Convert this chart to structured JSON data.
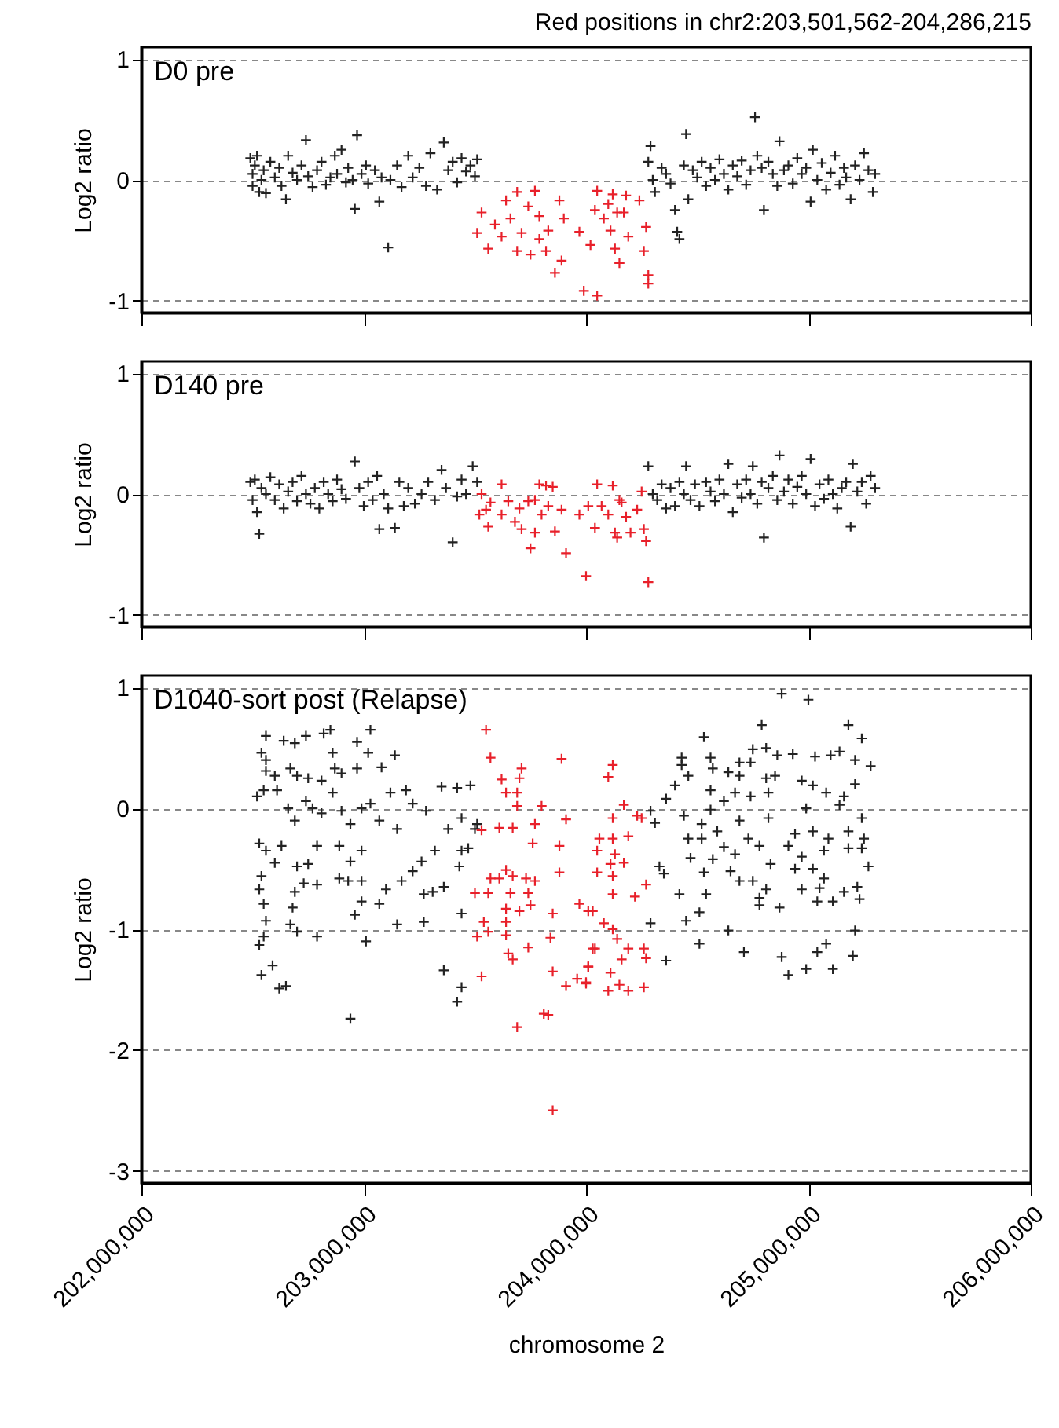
{
  "chart_data": [
    {
      "type": "scatter",
      "title": "Red positions in chr2:203,501,562-204,286,215",
      "annotations": [
        "D0 pre"
      ],
      "ylabel": "Log2 ratio",
      "xlim": [
        202000000,
        206000000
      ],
      "ylim": [
        -1.1,
        1.1
      ],
      "yticks": [
        -1,
        0,
        1
      ],
      "xticks": [
        {
          "value": 202000000,
          "label": null
        },
        {
          "value": 203000000,
          "label": null
        },
        {
          "value": 204000000,
          "label": null
        },
        {
          "value": 205000000,
          "label": null
        },
        {
          "value": 206000000,
          "label": null
        }
      ],
      "tick_labels": "y",
      "grid": "y",
      "marker": "cross",
      "series": [
        {
          "color": "#222222",
          "x": [
            202490000,
            202500000,
            202500000,
            202510000,
            202520000,
            202530000,
            202540000,
            202550000,
            202560000,
            202580000,
            202600000,
            202620000,
            202630000,
            202650000,
            202660000,
            202680000,
            202700000,
            202720000,
            202740000,
            202750000,
            202770000,
            202790000,
            202810000,
            202830000,
            202850000,
            202870000,
            202880000,
            202900000,
            202920000,
            202930000,
            202950000,
            202960000,
            202970000,
            202990000,
            203010000,
            203020000,
            203050000,
            203070000,
            203080000,
            203110000,
            203120000,
            203150000,
            203170000,
            203200000,
            203220000,
            203250000,
            203280000,
            203300000,
            203330000,
            203360000,
            203380000,
            203400000,
            203420000,
            203440000,
            203460000,
            203480000,
            203500000,
            203510000,
            204280000,
            204290000,
            204300000,
            204310000,
            204340000,
            204360000,
            204380000,
            204400000,
            204410000,
            204420000,
            204440000,
            204450000,
            204460000,
            204480000,
            204500000,
            204520000,
            204540000,
            204560000,
            204580000,
            204600000,
            204620000,
            204640000,
            204660000,
            204680000,
            204700000,
            204720000,
            204740000,
            204760000,
            204770000,
            204790000,
            204800000,
            204820000,
            204840000,
            204860000,
            204870000,
            204890000,
            204910000,
            204930000,
            204950000,
            204970000,
            204990000,
            205010000,
            205020000,
            205040000,
            205060000,
            205080000,
            205100000,
            205120000,
            205140000,
            205160000,
            205170000,
            205190000,
            205210000,
            205230000,
            205250000,
            205270000,
            205290000,
            205300000
          ],
          "values": [
            0.18,
            0.05,
            -0.05,
            0.12,
            0.2,
            -0.1,
            0.0,
            0.08,
            -0.11,
            0.15,
            0.02,
            0.1,
            -0.05,
            -0.16,
            0.2,
            0.06,
            0.0,
            0.12,
            0.33,
            0.03,
            -0.06,
            0.08,
            0.15,
            -0.04,
            0.02,
            0.2,
            0.05,
            0.25,
            -0.02,
            0.1,
            0.0,
            -0.24,
            0.37,
            0.05,
            0.12,
            -0.03,
            0.08,
            -0.18,
            0.02,
            -0.56,
            0.0,
            0.12,
            -0.06,
            0.2,
            0.02,
            0.1,
            -0.05,
            0.22,
            -0.08,
            0.31,
            0.08,
            0.15,
            -0.02,
            0.18,
            0.07,
            0.12,
            0.03,
            0.17,
            0.15,
            0.28,
            0.0,
            -0.1,
            0.1,
            0.05,
            -0.03,
            -0.25,
            -0.43,
            -0.49,
            0.12,
            0.38,
            -0.16,
            0.08,
            0.02,
            0.15,
            -0.05,
            0.1,
            0.0,
            0.17,
            0.05,
            -0.08,
            0.12,
            0.03,
            0.16,
            -0.04,
            0.08,
            0.52,
            0.2,
            0.1,
            -0.25,
            0.15,
            0.05,
            -0.05,
            0.32,
            0.08,
            0.12,
            -0.03,
            0.18,
            0.05,
            0.1,
            -0.18,
            0.25,
            0.0,
            0.14,
            -0.08,
            0.06,
            0.2,
            -0.04,
            0.1,
            0.02,
            -0.16,
            0.12,
            0.0,
            0.22,
            0.08,
            -0.1,
            0.05
          ]
        },
        {
          "color": "#e8202a",
          "x": [
            203530000,
            203510000,
            203560000,
            203640000,
            203690000,
            203770000,
            203740000,
            203660000,
            203620000,
            203690000,
            203750000,
            203790000,
            203830000,
            203880000,
            203900000,
            203890000,
            203860000,
            203820000,
            203990000,
            204050000,
            203970000,
            204020000,
            204050000,
            204040000,
            204100000,
            204120000,
            204180000,
            204110000,
            204130000,
            204150000,
            204190000,
            204240000,
            204270000,
            204260000,
            204280000,
            204280000,
            204080000,
            204170000,
            203590000,
            203710000,
            203790000,
            204140000
          ],
          "values": [
            -0.27,
            -0.44,
            -0.57,
            -0.17,
            -0.1,
            -0.09,
            -0.22,
            -0.32,
            -0.47,
            -0.59,
            -0.62,
            -0.3,
            -0.42,
            -0.17,
            -0.32,
            -0.67,
            -0.77,
            -0.59,
            -0.92,
            -0.96,
            -0.43,
            -0.54,
            -0.09,
            -0.25,
            -0.2,
            -0.12,
            -0.13,
            -0.42,
            -0.57,
            -0.69,
            -0.47,
            -0.17,
            -0.39,
            -0.59,
            -0.79,
            -0.86,
            -0.32,
            -0.27,
            -0.37,
            -0.44,
            -0.49,
            -0.27
          ]
        }
      ]
    },
    {
      "type": "scatter",
      "annotations": [
        "D140 pre"
      ],
      "ylabel": "Log2 ratio",
      "xlim": [
        202000000,
        206000000
      ],
      "ylim": [
        -1.1,
        1.1
      ],
      "yticks": [
        -1,
        0,
        1
      ],
      "xticks": [
        {
          "value": 202000000,
          "label": null
        },
        {
          "value": 203000000,
          "label": null
        },
        {
          "value": 204000000,
          "label": null
        },
        {
          "value": 205000000,
          "label": null
        },
        {
          "value": 206000000,
          "label": null
        }
      ],
      "tick_labels": "y",
      "grid": "y",
      "marker": "cross",
      "series": [
        {
          "color": "#222222",
          "x": [
            202490000,
            202500000,
            202510000,
            202520000,
            202530000,
            202540000,
            202560000,
            202580000,
            202600000,
            202620000,
            202640000,
            202660000,
            202680000,
            202700000,
            202720000,
            202740000,
            202760000,
            202780000,
            202800000,
            202820000,
            202840000,
            202860000,
            202880000,
            202900000,
            202920000,
            202960000,
            202980000,
            203000000,
            203020000,
            203040000,
            203060000,
            203070000,
            203090000,
            203110000,
            203140000,
            203160000,
            203180000,
            203200000,
            203230000,
            203260000,
            203290000,
            203320000,
            203350000,
            203370000,
            203400000,
            203420000,
            203440000,
            203460000,
            203490000,
            203510000,
            204280000,
            204300000,
            204320000,
            204340000,
            204360000,
            204380000,
            204400000,
            204420000,
            204440000,
            204450000,
            204470000,
            204490000,
            204510000,
            204540000,
            204560000,
            204580000,
            204600000,
            204620000,
            204640000,
            204660000,
            204680000,
            204700000,
            204720000,
            204740000,
            204750000,
            204770000,
            204790000,
            204800000,
            204820000,
            204840000,
            204860000,
            204870000,
            204890000,
            204910000,
            204930000,
            204950000,
            204970000,
            204990000,
            205010000,
            205030000,
            205050000,
            205070000,
            205090000,
            205110000,
            205130000,
            205150000,
            205170000,
            205190000,
            205200000,
            205220000,
            205240000,
            205260000,
            205280000,
            205300000
          ],
          "values": [
            0.1,
            -0.05,
            0.12,
            -0.15,
            -0.33,
            0.05,
            0.0,
            0.14,
            -0.05,
            0.08,
            -0.12,
            0.02,
            0.1,
            -0.06,
            0.15,
            0.0,
            -0.08,
            0.05,
            -0.12,
            0.1,
            0.0,
            -0.06,
            0.12,
            0.04,
            -0.04,
            0.27,
            0.05,
            -0.1,
            0.1,
            -0.05,
            0.15,
            -0.29,
            0.0,
            -0.12,
            -0.28,
            0.1,
            -0.1,
            0.05,
            -0.08,
            0.0,
            0.1,
            -0.05,
            0.2,
            0.05,
            -0.4,
            -0.02,
            0.12,
            0.0,
            0.23,
            0.1,
            0.23,
            0.0,
            -0.05,
            0.08,
            -0.12,
            0.05,
            -0.1,
            0.1,
            0.0,
            0.23,
            -0.05,
            0.08,
            -0.1,
            0.1,
            0.02,
            -0.06,
            0.12,
            0.0,
            0.25,
            -0.15,
            0.08,
            -0.03,
            0.12,
            0.0,
            0.23,
            -0.08,
            0.1,
            -0.36,
            0.05,
            0.15,
            -0.05,
            0.32,
            0.02,
            0.12,
            -0.08,
            0.06,
            0.15,
            0.0,
            0.29,
            -0.1,
            0.08,
            -0.04,
            0.12,
            0.0,
            -0.12,
            0.05,
            0.1,
            -0.27,
            0.25,
            0.02,
            0.1,
            -0.08,
            0.15,
            0.05
          ]
        },
        {
          "color": "#e8202a",
          "x": [
            203530000,
            203550000,
            203520000,
            203560000,
            203570000,
            203620000,
            203620000,
            203650000,
            203680000,
            203700000,
            203710000,
            203740000,
            203770000,
            203790000,
            203820000,
            203850000,
            203750000,
            203770000,
            203800000,
            203830000,
            203860000,
            203890000,
            203910000,
            204000000,
            203970000,
            204010000,
            204040000,
            204050000,
            204070000,
            204100000,
            204120000,
            204130000,
            204140000,
            204160000,
            204180000,
            204200000,
            204230000,
            204250000,
            204260000,
            204270000,
            204280000,
            204150000
          ],
          "values": [
            0.0,
            -0.13,
            -0.17,
            -0.27,
            -0.07,
            0.08,
            -0.17,
            -0.06,
            -0.23,
            -0.12,
            -0.29,
            -0.06,
            -0.05,
            0.08,
            0.07,
            0.06,
            -0.45,
            -0.32,
            -0.17,
            -0.1,
            -0.31,
            -0.13,
            -0.49,
            -0.68,
            -0.17,
            -0.1,
            -0.28,
            0.08,
            -0.1,
            -0.17,
            0.07,
            -0.32,
            -0.36,
            -0.07,
            -0.19,
            -0.32,
            -0.13,
            0.02,
            -0.29,
            -0.39,
            -0.73,
            -0.05
          ]
        }
      ]
    },
    {
      "type": "scatter",
      "annotations": [
        "D1040-sort post (Relapse)"
      ],
      "xlabel": "chromosome 2",
      "ylabel": "Log2 ratio",
      "xlim": [
        202000000,
        206000000
      ],
      "ylim": [
        -3.1,
        1.1
      ],
      "yticks": [
        -3,
        -2,
        -1,
        0,
        1
      ],
      "xticks": [
        {
          "value": 202000000,
          "label": "202,000,000"
        },
        {
          "value": 203000000,
          "label": "203,000,000"
        },
        {
          "value": 204000000,
          "label": "204,000,000"
        },
        {
          "value": 205000000,
          "label": "205,000,000"
        },
        {
          "value": 206000000,
          "label": "206,000,000"
        }
      ],
      "grid": "y",
      "marker": "cross",
      "series": [
        {
          "color": "#222222",
          "x": [
            202560000,
            202640000,
            202690000,
            202740000,
            202820000,
            202850000,
            202970000,
            203030000,
            202540000,
            202560000,
            202560000,
            202600000,
            202670000,
            202700000,
            202750000,
            202810000,
            202860000,
            202870000,
            202900000,
            202970000,
            203020000,
            203080000,
            203140000,
            202520000,
            202550000,
            202610000,
            202660000,
            202690000,
            202740000,
            202770000,
            202810000,
            202860000,
            202900000,
            202940000,
            202990000,
            203030000,
            203070000,
            203120000,
            203150000,
            203190000,
            203220000,
            203280000,
            203350000,
            203420000,
            203480000,
            203440000,
            203500000,
            203380000,
            202530000,
            202560000,
            202630000,
            202600000,
            202700000,
            202750000,
            202790000,
            202890000,
            202940000,
            202990000,
            202540000,
            202530000,
            202550000,
            202560000,
            202530000,
            202550000,
            202680000,
            202690000,
            202730000,
            202790000,
            202890000,
            202930000,
            202990000,
            202990000,
            202960000,
            203070000,
            203100000,
            203170000,
            203220000,
            203260000,
            203270000,
            203310000,
            203360000,
            203320000,
            203440000,
            203470000,
            203430000,
            202670000,
            202700000,
            202790000,
            203010000,
            203150000,
            203270000,
            203440000,
            202540000,
            202590000,
            202620000,
            202650000,
            202940000,
            203360000,
            203440000,
            203420000,
            203510000,
            204880000,
            205000000,
            204790000,
            205180000,
            205240000,
            204530000,
            204750000,
            204810000,
            204860000,
            204930000,
            205030000,
            205100000,
            205140000,
            204430000,
            204430000,
            204560000,
            204570000,
            204690000,
            204740000,
            205280000,
            205210000,
            204400000,
            204460000,
            204360000,
            204290000,
            204310000,
            204440000,
            204560000,
            204620000,
            204670000,
            204740000,
            204820000,
            204850000,
            204640000,
            204690000,
            204810000,
            204970000,
            205020000,
            205080000,
            205160000,
            205210000,
            205140000,
            205240000,
            204990000,
            204560000,
            204690000,
            204820000,
            204520000,
            204590000,
            204460000,
            204520000,
            204620000,
            204730000,
            204780000,
            204940000,
            205020000,
            205090000,
            205180000,
            205250000,
            204470000,
            204570000,
            204670000,
            204830000,
            204910000,
            204970000,
            205070000,
            205180000,
            205240000,
            205270000,
            204330000,
            204350000,
            204530000,
            204650000,
            204690000,
            204750000,
            204940000,
            205020000,
            204420000,
            204540000,
            204780000,
            204810000,
            204970000,
            205050000,
            205070000,
            205160000,
            205220000,
            205230000,
            204780000,
            204870000,
            205040000,
            205110000,
            204510000,
            204450000,
            204290000,
            204640000,
            205210000,
            204510000,
            204710000,
            204360000,
            204880000,
            204910000,
            204990000,
            205040000,
            205080000,
            205110000,
            205200000
          ],
          "values": [
            0.6,
            0.56,
            0.54,
            0.6,
            0.62,
            0.65,
            0.55,
            0.65,
            0.46,
            0.4,
            0.31,
            0.27,
            0.33,
            0.27,
            0.25,
            0.23,
            0.46,
            0.33,
            0.29,
            0.33,
            0.46,
            0.34,
            0.44,
            0.1,
            0.15,
            0.15,
            0.0,
            -0.1,
            0.06,
            0.0,
            -0.04,
            0.13,
            -0.02,
            -0.13,
            0.0,
            0.04,
            -0.1,
            0.13,
            -0.17,
            0.15,
            0.04,
            -0.02,
            0.18,
            0.17,
            0.19,
            -0.08,
            -0.17,
            -0.17,
            -0.29,
            -0.35,
            -0.31,
            -0.45,
            -0.48,
            -0.46,
            -0.31,
            -0.31,
            -0.44,
            -0.35,
            -0.56,
            -0.67,
            -0.79,
            -0.93,
            -1.13,
            -1.06,
            -0.82,
            -0.69,
            -0.62,
            -0.63,
            -0.58,
            -0.6,
            -0.6,
            -0.77,
            -0.88,
            -0.79,
            -0.67,
            -0.6,
            -0.52,
            -0.44,
            -0.71,
            -0.69,
            -0.65,
            -0.35,
            -0.35,
            -0.33,
            -0.48,
            -0.96,
            -1.02,
            -1.06,
            -1.1,
            -0.96,
            -0.94,
            -0.87,
            -1.38,
            -1.3,
            -1.49,
            -1.47,
            -1.74,
            -1.34,
            -1.48,
            -1.6,
            -0.13,
            0.95,
            0.9,
            0.69,
            0.69,
            0.58,
            0.59,
            0.49,
            0.5,
            0.44,
            0.45,
            0.43,
            0.44,
            0.47,
            0.42,
            0.36,
            0.42,
            0.33,
            0.38,
            0.38,
            0.35,
            0.4,
            0.19,
            0.27,
            0.08,
            -0.02,
            -0.12,
            -0.06,
            0.15,
            0.06,
            0.13,
            0.1,
            0.13,
            0.27,
            0.3,
            0.27,
            0.25,
            0.23,
            0.19,
            0.13,
            0.1,
            0.2,
            0.03,
            -0.08,
            0.0,
            -0.01,
            -0.1,
            -0.08,
            -0.13,
            -0.19,
            -0.25,
            -0.25,
            -0.32,
            -0.25,
            -0.31,
            -0.21,
            -0.19,
            -0.25,
            -0.19,
            -0.25,
            -0.41,
            -0.42,
            -0.38,
            -0.46,
            -0.31,
            -0.4,
            -0.35,
            -0.33,
            -0.33,
            -0.48,
            -0.48,
            -0.54,
            -0.53,
            -0.52,
            -0.6,
            -0.6,
            -0.5,
            -0.5,
            -0.71,
            -0.71,
            -0.74,
            -0.67,
            -0.67,
            -0.66,
            -0.58,
            -0.69,
            -0.65,
            -0.75,
            -0.8,
            -0.82,
            -0.77,
            -0.77,
            -0.86,
            -0.93,
            -0.95,
            -1.01,
            -1.01,
            -1.12,
            -1.19,
            -1.26,
            -1.23,
            -1.38,
            -1.33,
            -1.19,
            -1.12,
            -1.33,
            -1.22
          ]
        },
        {
          "color": "#e8202a",
          "x": [
            203550000,
            203570000,
            203530000,
            203620000,
            203700000,
            203710000,
            203640000,
            203690000,
            203690000,
            203800000,
            203890000,
            203910000,
            203610000,
            203670000,
            203770000,
            203760000,
            203880000,
            203880000,
            203640000,
            203570000,
            203610000,
            203670000,
            203730000,
            203770000,
            203500000,
            203560000,
            203660000,
            203740000,
            203640000,
            203700000,
            203750000,
            203850000,
            203970000,
            204030000,
            203540000,
            203560000,
            203510000,
            203640000,
            203640000,
            203840000,
            203650000,
            203670000,
            203740000,
            203530000,
            203850000,
            203910000,
            203960000,
            204000000,
            204010000,
            204030000,
            203690000,
            203810000,
            203830000,
            203850000,
            204120000,
            204100000,
            204170000,
            204120000,
            204230000,
            204250000,
            204060000,
            204120000,
            204190000,
            204050000,
            204130000,
            204050000,
            204110000,
            204170000,
            204120000,
            204270000,
            204120000,
            204220000,
            204010000,
            204080000,
            204120000,
            204140000,
            204040000,
            204190000,
            204260000,
            204160000,
            204270000,
            204010000,
            204110000,
            204000000,
            204100000,
            204150000,
            204190000,
            204260000
          ],
          "values": [
            0.65,
            0.42,
            -0.18,
            0.24,
            0.25,
            0.33,
            0.13,
            0.13,
            0.02,
            0.02,
            0.41,
            -0.09,
            -0.16,
            -0.16,
            -0.13,
            -0.29,
            -0.31,
            -0.53,
            -0.51,
            -0.58,
            -0.58,
            -0.56,
            -0.58,
            -0.6,
            -0.7,
            -0.7,
            -0.7,
            -0.7,
            -0.83,
            -0.85,
            -0.8,
            -0.87,
            -0.79,
            -0.85,
            -0.94,
            -1.02,
            -1.06,
            -0.94,
            -1.05,
            -1.07,
            -1.2,
            -1.25,
            -1.15,
            -1.39,
            -1.35,
            -1.47,
            -1.41,
            -1.44,
            -1.31,
            -1.16,
            -1.81,
            -1.7,
            -1.71,
            -2.5,
            0.36,
            0.26,
            0.03,
            -0.08,
            -0.06,
            -0.08,
            -0.25,
            -0.25,
            -0.23,
            -0.35,
            -0.38,
            -0.53,
            -0.46,
            -0.45,
            -0.56,
            -0.63,
            -0.71,
            -0.73,
            -0.85,
            -0.95,
            -1.0,
            -1.08,
            -1.16,
            -1.16,
            -1.16,
            -1.25,
            -1.24,
            -1.31,
            -1.36,
            -1.45,
            -1.51,
            -1.46,
            -1.51,
            -1.48
          ]
        }
      ]
    }
  ]
}
